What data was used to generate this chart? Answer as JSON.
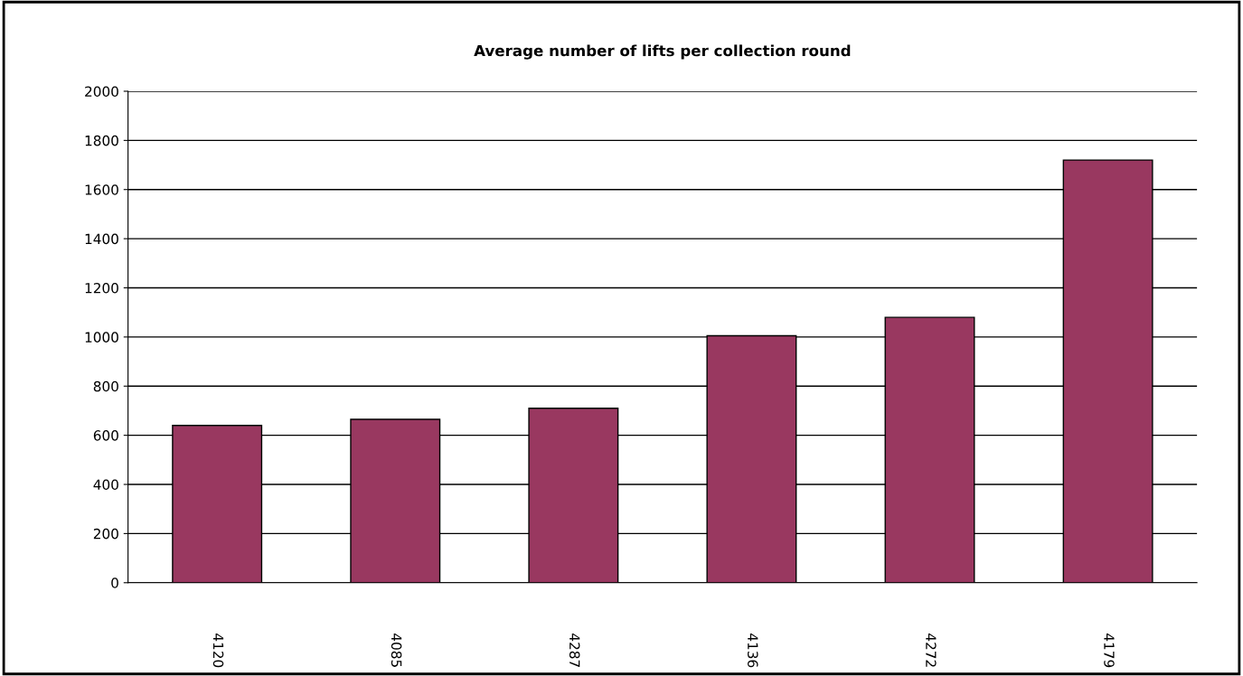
{
  "chart_data": {
    "type": "bar",
    "title": "Average number of lifts per collection round",
    "categories": [
      "4120",
      "4085",
      "4287",
      "4136",
      "4272",
      "4179"
    ],
    "values": [
      640,
      665,
      710,
      1005,
      1080,
      1720
    ],
    "color": "#993860",
    "ylim": [
      0,
      2000
    ],
    "yticks": [
      0,
      200,
      400,
      600,
      800,
      1000,
      1200,
      1400,
      1600,
      1800,
      2000
    ],
    "grid": "y",
    "legend": false
  }
}
